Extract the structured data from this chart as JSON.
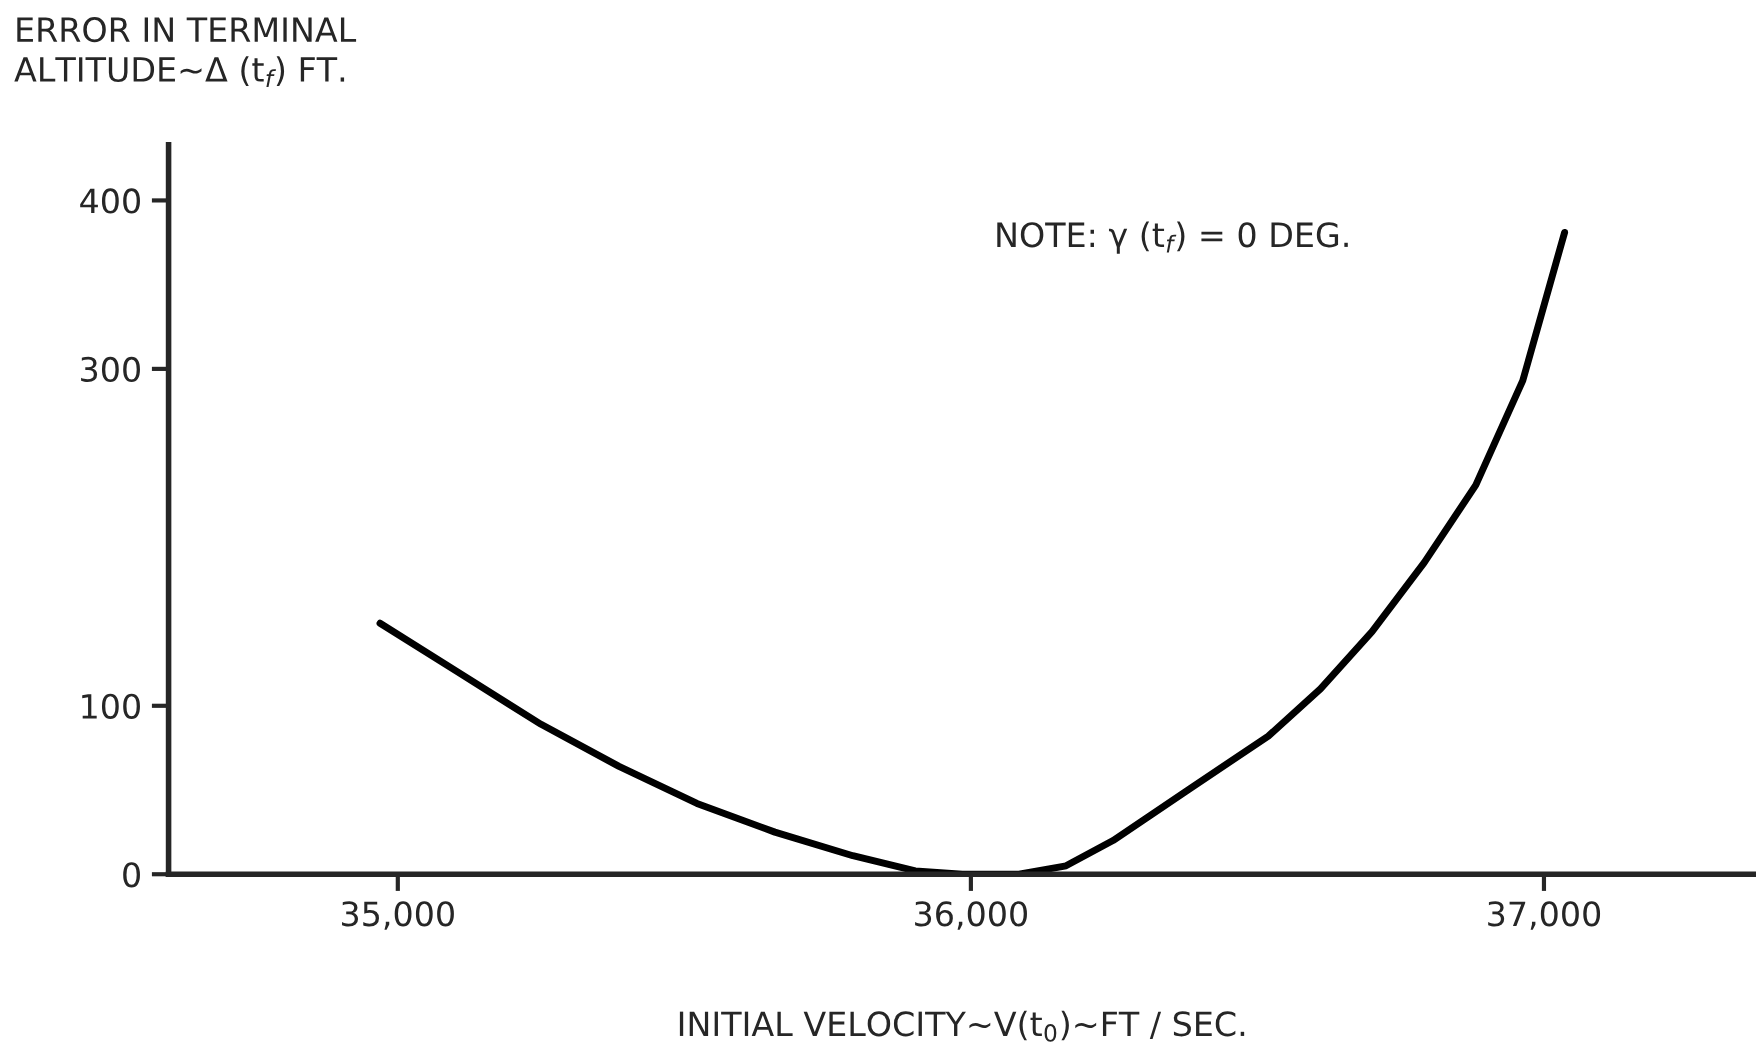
{
  "chart_data": {
    "type": "line",
    "xlabel": "INITIAL VELOCITY~V(t$_{0}$)~FT / SEC.",
    "ylabel": "ERROR IN TERMINAL\nALTITUDE~Δ (t$_{f}$) FT.",
    "annotations": [
      "NOTE: γ (t$_{f}$) = 0 DEG."
    ],
    "series": [
      {
        "color": "#000000",
        "x": [
          34969,
          35105,
          35250,
          35386,
          35522,
          35658,
          35794,
          35903,
          35985,
          36084,
          36166,
          36248,
          36383,
          36519,
          36610,
          36700,
          36791,
          36881,
          36963,
          37036
        ],
        "values": [
          149,
          120,
          89,
          64,
          42,
          25,
          11,
          2,
          0,
          0,
          5,
          20,
          51,
          82,
          110,
          144,
          185,
          231,
          293,
          381
        ]
      }
    ],
    "xlim": [
      34600,
      37370
    ],
    "ylim": [
      0,
      433
    ],
    "xticks": [
      {
        "value": 35000,
        "label": "35,000"
      },
      {
        "value": 36000,
        "label": "36,000"
      },
      {
        "value": 37000,
        "label": "37,000"
      }
    ],
    "yticks": [
      0,
      100,
      300,
      400
    ],
    "grid": false,
    "legend": false,
    "marker": "none",
    "line_style": "solid"
  }
}
